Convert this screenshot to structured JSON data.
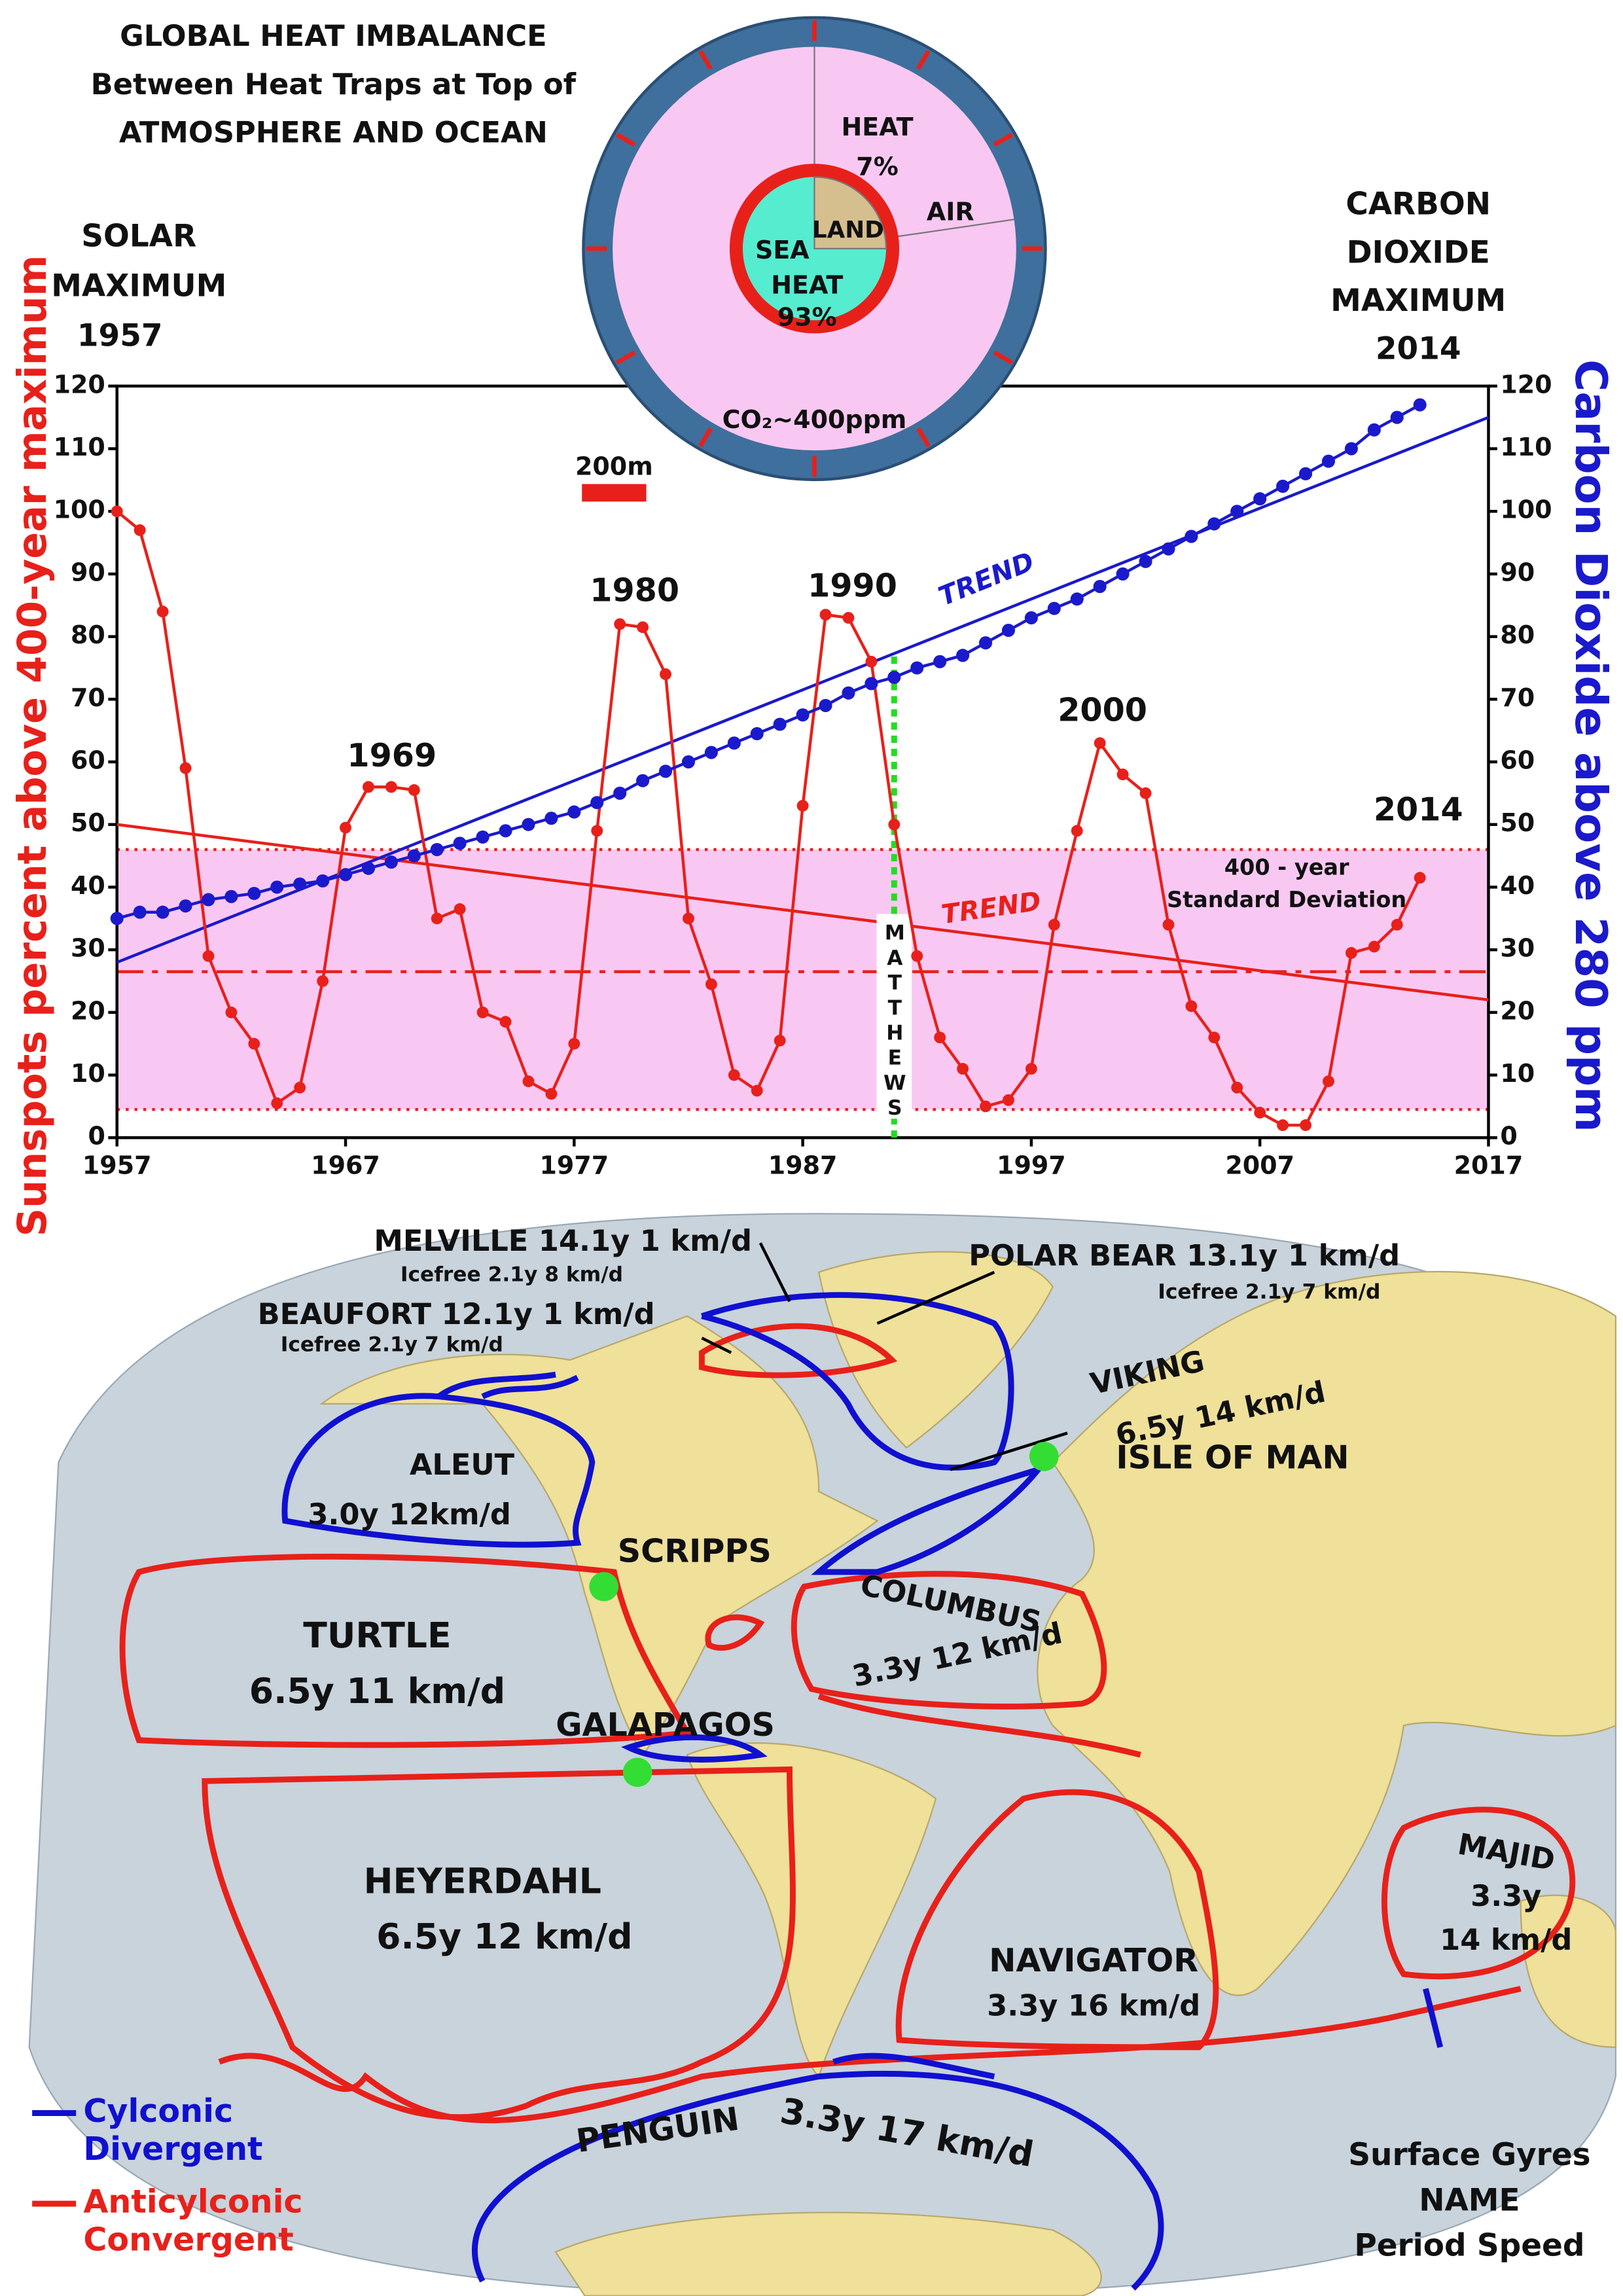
{
  "chart_data": {
    "type": "line",
    "title": [
      "GLOBAL HEAT IMBALANCE",
      "Between Heat Traps at Top of",
      "ATMOSPHERE AND OCEAN"
    ],
    "left_note": [
      "SOLAR",
      "MAXIMUM",
      "1957"
    ],
    "right_note": [
      "CARBON",
      "DIOXIDE",
      "MAXIMUM",
      "2014"
    ],
    "ylabel": "Sunspots percent above 400-year maximum",
    "y2label": "Carbon Dioxide above 280 ppm",
    "xlim": [
      1957,
      2017
    ],
    "xticks": [
      1957,
      1967,
      1977,
      1987,
      1997,
      2007,
      2017
    ],
    "ylim": [
      0,
      120
    ],
    "yticks": [
      0,
      10,
      20,
      30,
      40,
      50,
      60,
      70,
      80,
      90,
      100,
      110,
      120
    ],
    "y2lim": [
      0,
      120
    ],
    "y2ticks": [
      0,
      10,
      20,
      30,
      40,
      50,
      60,
      70,
      80,
      90,
      100,
      110,
      120
    ],
    "grid": false,
    "x": [
      1957,
      1958,
      1959,
      1960,
      1961,
      1962,
      1963,
      1964,
      1965,
      1966,
      1967,
      1968,
      1969,
      1970,
      1971,
      1972,
      1973,
      1974,
      1975,
      1976,
      1977,
      1978,
      1979,
      1980,
      1981,
      1982,
      1983,
      1984,
      1985,
      1986,
      1987,
      1988,
      1989,
      1990,
      1991,
      1992,
      1993,
      1994,
      1995,
      1996,
      1997,
      1998,
      1999,
      2000,
      2001,
      2002,
      2003,
      2004,
      2005,
      2006,
      2007,
      2008,
      2009,
      2010,
      2011,
      2012,
      2013,
      2014
    ],
    "series": [
      {
        "name": "Sunspots",
        "color": "#e8201a",
        "values": [
          100,
          97,
          84,
          59,
          29,
          20,
          15,
          5.5,
          8,
          25,
          49.5,
          56,
          56,
          55.5,
          35,
          36.5,
          20,
          18.5,
          9,
          7,
          15,
          49,
          82,
          81.5,
          74,
          35,
          24.5,
          10,
          7.5,
          15.5,
          53,
          83.5,
          83,
          76,
          50,
          29,
          16,
          11,
          5,
          6,
          11,
          34,
          49,
          63,
          58,
          55,
          34,
          21,
          16,
          8,
          4,
          2,
          2,
          9,
          29.5,
          30.5,
          34,
          41.5
        ]
      },
      {
        "name": "Carbon Dioxide",
        "color": "#1a1acc",
        "axis": "y2",
        "values": [
          35,
          36,
          36,
          37,
          38,
          38.5,
          39,
          40,
          40.5,
          41,
          42,
          43,
          44,
          45,
          46,
          47,
          48,
          49,
          50,
          51,
          52,
          53.5,
          55,
          57,
          58.5,
          60,
          61.5,
          63,
          64.5,
          66,
          67.5,
          69,
          71,
          72.5,
          73.5,
          75,
          76,
          77,
          79,
          81,
          83,
          84.5,
          86,
          88,
          90,
          92,
          94,
          96,
          98,
          100,
          102,
          104,
          106,
          108,
          110,
          113,
          115,
          117
        ]
      }
    ],
    "trends": [
      {
        "label": "TREND",
        "color": "#e8201a",
        "x": [
          1957,
          2017
        ],
        "values": [
          50,
          22
        ]
      },
      {
        "label": "TREND",
        "color": "#1a1acc",
        "axis": "y2",
        "x": [
          1957,
          2017
        ],
        "values": [
          28,
          115
        ]
      }
    ],
    "band": {
      "values": [
        4.5,
        46
      ],
      "color": "#f9c8f2",
      "label": [
        "400 - year",
        "Standard Deviation"
      ]
    },
    "reference_lines": [
      {
        "value": 46,
        "style": "dotted"
      },
      {
        "value": 26.5,
        "style": "dashdot"
      },
      {
        "value": 4.5,
        "style": "dotted"
      }
    ],
    "vline": {
      "x": 1991,
      "top": 77,
      "label": "MATTHEWS",
      "color": "#22dd22"
    },
    "annotations": [
      "1969",
      "1980",
      "1990",
      "2000",
      "2014"
    ],
    "inset": {
      "outer": "HEAT",
      "outer_value": "7%",
      "land": "LAND",
      "air": "AIR",
      "sea": "SEA",
      "inner": "HEAT",
      "inner_value": "93%",
      "co2": "CO₂~400ppm",
      "scale": "200m"
    }
  },
  "map": {
    "labels": [
      "MELVILLE 14.1y 1 km/d",
      "Icefree 2.1y 8 km/d",
      "POLAR BEAR 13.1y 1 km/d",
      "Icefree 2.1y 7 km/d",
      "BEAUFORT 12.1y 1 km/d",
      "Icefree 2.1y 7 km/d",
      "VIKING",
      "6.5y 14 km/d",
      "ALEUT",
      "3.0y  12km/d",
      "TURTLE",
      "6.5y 11 km/d",
      "COLUMBUS",
      "3.3y 12 km/d",
      "HEYERDAHL",
      "6.5y 12 km/d",
      "NAVIGATOR",
      "3.3y 16 km/d",
      "MAJID",
      "3.3y",
      "14 km/d",
      "PENGUIN",
      "3.3y 17 km/d"
    ],
    "stations": [
      "SCRIPPS",
      "GALAPAGOS",
      "ISLE OF MAN"
    ],
    "legend": [
      {
        "label": [
          "Cylconic",
          "Divergent"
        ],
        "color": "#1010d0"
      },
      {
        "label": [
          "Anticylconic",
          "Convergent"
        ],
        "color": "#e8201a"
      }
    ],
    "key": [
      "Surface Gyres",
      "NAME",
      "Period   Speed"
    ]
  }
}
